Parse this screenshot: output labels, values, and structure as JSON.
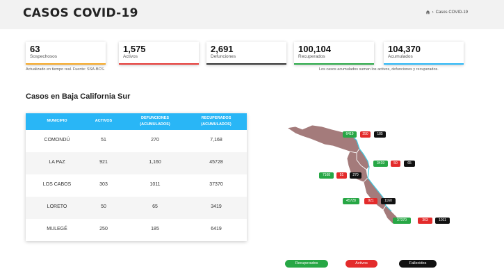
{
  "header": {
    "title": "CASOS COVID-19",
    "breadcrumb": "Casos COVID-19"
  },
  "cards": [
    {
      "value": "63",
      "label": "Sospechosos",
      "color": "#f5a623"
    },
    {
      "value": "1,575",
      "label": "Activos",
      "color": "#e53935"
    },
    {
      "value": "2,691",
      "label": "Defunciones",
      "color": "#333333"
    },
    {
      "value": "100,104",
      "label": "Recuperados",
      "color": "#27a745"
    },
    {
      "value": "104,370",
      "label": "Acumulados",
      "color": "#29b6f6"
    }
  ],
  "notes": {
    "left": "Actualizado en tiempo real. Fuente: SSA-BCS.",
    "right": "Los casos acumulados suman los activos, defunciones y recuperados."
  },
  "section_title": "Casos en Baja California Sur",
  "table": {
    "headers": [
      "MUNICIPIO",
      "ACTIVOS",
      "DEFUNCIONES (ACUMULADOS)",
      "RECUPERADOS (ACUMULADOS)"
    ],
    "header_lines": [
      [
        "MUNICIPIO"
      ],
      [
        "ACTIVOS"
      ],
      [
        "DEFUNCIONES",
        "(ACUMULADOS)"
      ],
      [
        "RECUPERADOS",
        "(ACUMULADOS)"
      ]
    ],
    "rows": [
      {
        "municipio": "COMONDÚ",
        "activos": "51",
        "defunciones": "270",
        "recuperados": "7,168"
      },
      {
        "municipio": "LA PAZ",
        "activos": "921",
        "defunciones": "1,160",
        "recuperados": "45728"
      },
      {
        "municipio": "LOS CABOS",
        "activos": "303",
        "defunciones": "1011",
        "recuperados": "37370"
      },
      {
        "municipio": "LORETO",
        "activos": "50",
        "defunciones": "65",
        "recuperados": "3419"
      },
      {
        "municipio": "MULEGÉ",
        "activos": "250",
        "defunciones": "185",
        "recuperados": "6419"
      }
    ]
  },
  "map": {
    "mulege": {
      "recuperados": "6419",
      "activos": "250",
      "fallecidos": "185"
    },
    "loreto": {
      "recuperados": "3419",
      "activos": "50",
      "fallecidos": "65"
    },
    "comondu": {
      "recuperados": "7168",
      "activos": "51",
      "fallecidos": "270"
    },
    "lapaz": {
      "recuperados": "45728",
      "activos": "921",
      "fallecidos": "1160"
    },
    "loscabos": {
      "recuperados": "37370",
      "activos": "303",
      "fallecidos": "1011"
    }
  },
  "legend": {
    "recuperados": "Recuperados",
    "activos": "Activos",
    "fallecidos": "Fallecidos"
  },
  "colors": {
    "green": "#27a745",
    "red": "#e32b2b",
    "black": "#111111",
    "map_fill": "#a47b7b",
    "header_blue": "#29b6f6"
  }
}
